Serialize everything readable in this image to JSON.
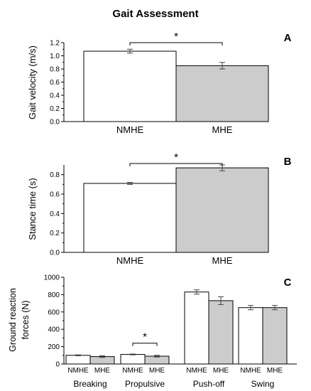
{
  "figure": {
    "title": "Gait  Assessment"
  },
  "chart_data": [
    {
      "panel": "A",
      "type": "bar",
      "categories": [
        "NMHE",
        "MHE"
      ],
      "values": [
        1.07,
        0.85
      ],
      "errors": [
        0.03,
        0.05
      ],
      "ylabel": "Gait velocity (m/s)",
      "ylim": [
        0,
        1.2
      ],
      "yticks": [
        0.0,
        0.2,
        0.4,
        0.6,
        0.8,
        1.0,
        1.2
      ],
      "ytick_labels": [
        "0.0",
        "0.2",
        "0.4",
        "0.6",
        "0.8",
        "1.0",
        "1.2"
      ],
      "significance": [
        {
          "between": [
            "NMHE",
            "MHE"
          ],
          "label": "*"
        }
      ],
      "colors": [
        "#ffffff",
        "#cccccc"
      ]
    },
    {
      "panel": "B",
      "type": "bar",
      "categories": [
        "NMHE",
        "MHE"
      ],
      "values": [
        0.71,
        0.87
      ],
      "errors": [
        0.01,
        0.03
      ],
      "ylabel": "Stance time (s)",
      "ylim": [
        0,
        0.9
      ],
      "yticks": [
        0.0,
        0.2,
        0.4,
        0.6,
        0.8
      ],
      "ytick_labels": [
        "0.0",
        "0.2",
        "0.4",
        "0.6",
        "0.8"
      ],
      "significance": [
        {
          "between": [
            "NMHE",
            "MHE"
          ],
          "label": "*"
        }
      ],
      "colors": [
        "#ffffff",
        "#cccccc"
      ]
    },
    {
      "panel": "C",
      "type": "bar",
      "groups": [
        "Breaking",
        "Propulsive",
        "Push-off",
        "Swing"
      ],
      "subcategories": [
        "NMHE",
        "MHE"
      ],
      "series": [
        {
          "values": [
            100,
            110,
            830,
            650
          ],
          "errors": [
            5,
            5,
            25,
            25
          ]
        },
        {
          "values": [
            85,
            90,
            730,
            650
          ],
          "errors": [
            10,
            10,
            45,
            25
          ]
        }
      ],
      "ylabel_lines": [
        "Ground reaction",
        "forces (N)"
      ],
      "ylim": [
        0,
        1000
      ],
      "yticks": [
        0,
        200,
        400,
        600,
        800,
        1000
      ],
      "ytick_labels": [
        "0",
        "200",
        "400",
        "600",
        "800",
        "1000"
      ],
      "significance": [
        {
          "group": "Propulsive",
          "label": "*"
        }
      ],
      "colors": [
        "#ffffff",
        "#cccccc"
      ]
    }
  ]
}
